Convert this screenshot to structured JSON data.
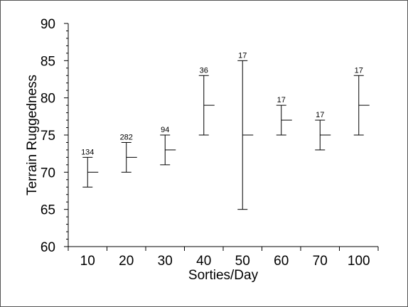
{
  "chart_data": {
    "type": "boxplot",
    "title": "",
    "xlabel": "Sorties/Day",
    "ylabel": "Terrain Ruggedness",
    "ylim": [
      60,
      90
    ],
    "yticks": [
      60,
      65,
      70,
      75,
      80,
      85,
      90
    ],
    "grid": false,
    "categories": [
      "10",
      "20",
      "30",
      "40",
      "50",
      "60",
      "70",
      "100"
    ],
    "low": [
      68,
      70,
      71,
      75,
      65,
      75,
      73,
      75
    ],
    "median": [
      70,
      72,
      73,
      79,
      75,
      77,
      75,
      79
    ],
    "high": [
      72,
      74,
      75,
      83,
      85,
      79,
      77,
      83
    ],
    "counts": [
      "134",
      "282",
      "94",
      "36",
      "17",
      "17",
      "17",
      "17"
    ]
  }
}
